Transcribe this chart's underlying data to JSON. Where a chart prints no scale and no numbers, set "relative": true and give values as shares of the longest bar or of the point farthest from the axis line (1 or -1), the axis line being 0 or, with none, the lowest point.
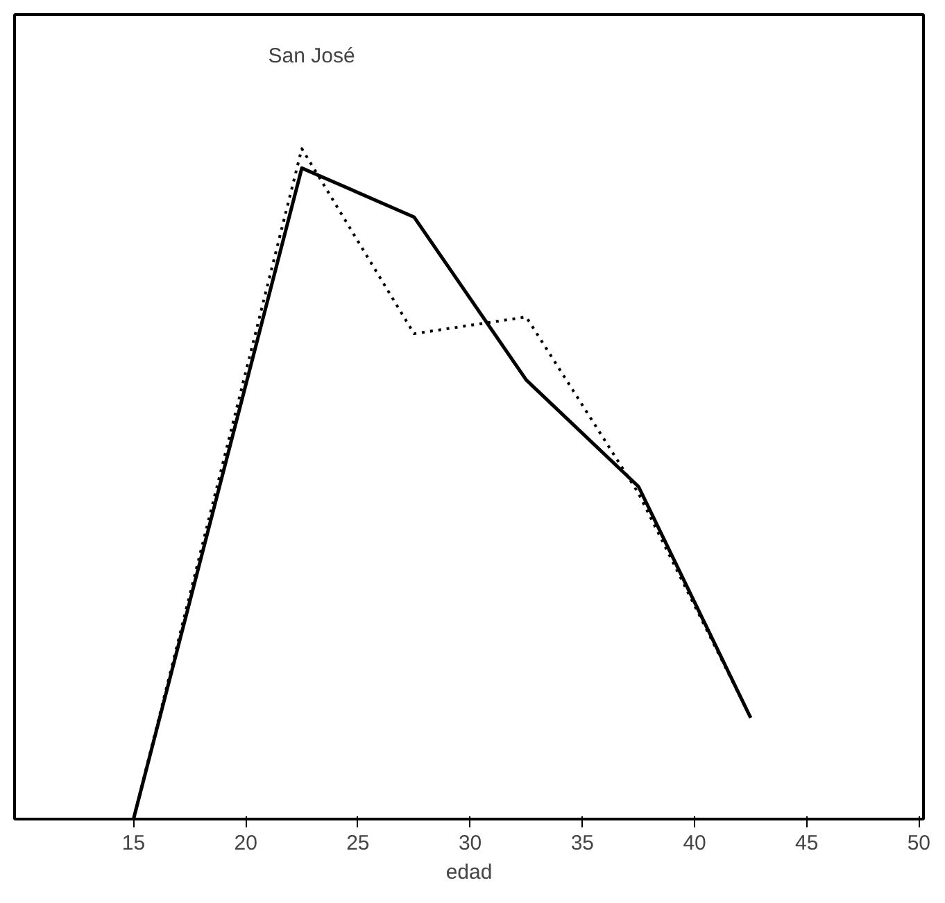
{
  "chart_data": {
    "type": "line",
    "relative": true,
    "xlabel": "edad",
    "annotations": [
      "San José"
    ],
    "x": [
      15,
      22.5,
      27.5,
      32.5,
      37.5,
      42.5
    ],
    "xlim": [
      9.7,
      50.2
    ],
    "xticks": [
      15,
      20,
      25,
      30,
      35,
      40,
      45,
      50
    ],
    "series": [
      {
        "color": "#000000",
        "line_style": "solid",
        "values": [
          0,
          0.971,
          0.898,
          0.655,
          0.496,
          0.151
        ]
      },
      {
        "color": "#000000",
        "line_style": "dotted",
        "values": [
          0,
          1,
          0.724,
          0.749,
          0.486,
          0.151
        ]
      }
    ],
    "grid": false,
    "marker": "none"
  }
}
